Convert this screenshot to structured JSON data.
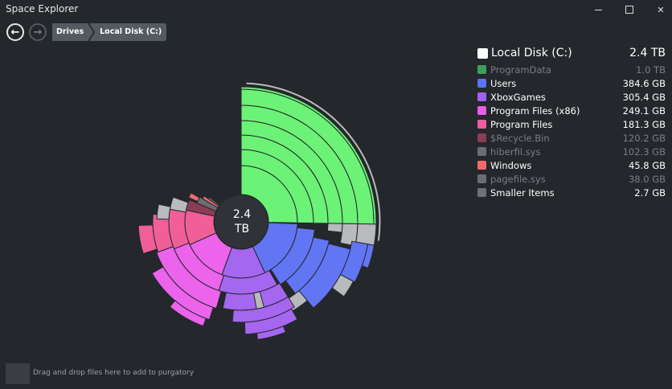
{
  "window": {
    "title": "Space Explorer"
  },
  "nav": {
    "back_icon": "arrow-left-icon",
    "forward_icon": "arrow-right-icon"
  },
  "breadcrumb": [
    "Drives",
    "Local Disk (C:)"
  ],
  "center": {
    "line1": "2.4",
    "line2": "TB"
  },
  "legend": {
    "root": {
      "name": "Local Disk (C:)",
      "size": "2.4 TB",
      "color": "#ffffff"
    },
    "items": [
      {
        "name": "ProgramData",
        "size": "1.0 TB",
        "color": "#3f9d5f",
        "dim": true
      },
      {
        "name": "Users",
        "size": "384.6 GB",
        "color": "#5b73f5",
        "dim": false
      },
      {
        "name": "XboxGames",
        "size": "305.4 GB",
        "color": "#a35ff2",
        "dim": false
      },
      {
        "name": "Program Files (x86)",
        "size": "249.1 GB",
        "color": "#e65ee8",
        "dim": false
      },
      {
        "name": "Program Files",
        "size": "181.3 GB",
        "color": "#f25ba2",
        "dim": false
      },
      {
        "name": "$Recycle.Bin",
        "size": "120.2 GB",
        "color": "#8b3d56",
        "dim": true
      },
      {
        "name": "hiberfil.sys",
        "size": "102.3 GB",
        "color": "#6a6d72",
        "dim": true
      },
      {
        "name": "Windows",
        "size": "45.8 GB",
        "color": "#f06a6a",
        "dim": false
      },
      {
        "name": "pagefile.sys",
        "size": "38.0 GB",
        "color": "#6a6d72",
        "dim": true
      },
      {
        "name": "Smaller Items",
        "size": "2.7 GB",
        "color": "#6d7074",
        "dim": false
      }
    ]
  },
  "purgatory": {
    "text": "Drag and drop files here to add to purgatory"
  }
}
